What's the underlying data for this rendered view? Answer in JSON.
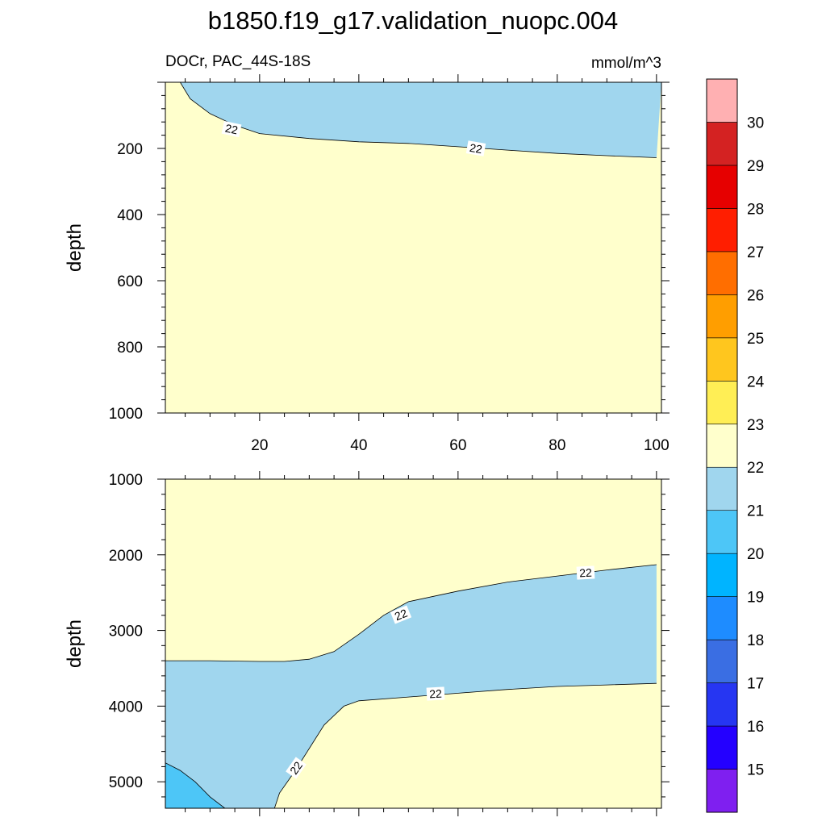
{
  "title": "b1850.f19_g17.validation_nuopc.004",
  "chart_data": {
    "type": "contour",
    "title": "b1850.f19_g17.validation_nuopc.004",
    "variable_label": "DOCr, PAC_44S-18S",
    "units": "mmol/m^3",
    "panels": [
      {
        "name": "upper",
        "ylabel": "depth",
        "xlim": [
          1,
          101
        ],
        "ylim": [
          1000,
          0
        ],
        "x_ticks": [
          "20",
          "40",
          "60",
          "80",
          "100"
        ],
        "y_ticks": [
          "200",
          "400",
          "600",
          "800",
          "1000"
        ],
        "contour_labels": [
          "22",
          "22"
        ],
        "contour_22_depth": {
          "x": [
            4,
            6,
            10,
            15,
            20,
            30,
            40,
            50,
            60,
            70,
            80,
            90,
            100
          ],
          "depth": [
            0,
            50,
            95,
            130,
            155,
            170,
            180,
            185,
            195,
            205,
            215,
            222,
            228
          ]
        }
      },
      {
        "name": "lower",
        "ylabel": "depth",
        "xlim": [
          1,
          101
        ],
        "ylim": [
          5350,
          1000
        ],
        "x_ticks": [],
        "y_ticks": [
          "1000",
          "2000",
          "3000",
          "4000",
          "5000"
        ],
        "contour_labels": [
          "22",
          "22",
          "22",
          "22"
        ],
        "contour_22_upper": {
          "x": [
            1,
            10,
            20,
            25,
            30,
            35,
            40,
            45,
            50,
            60,
            70,
            80,
            90,
            100
          ],
          "depth": [
            3400,
            3400,
            3410,
            3410,
            3380,
            3280,
            3050,
            2800,
            2620,
            2480,
            2360,
            2280,
            2200,
            2130
          ]
        },
        "contour_22_lower": {
          "x": [
            23,
            24,
            27,
            30,
            33,
            37,
            40,
            50,
            60,
            70,
            80,
            90,
            100
          ],
          "depth": [
            5350,
            5150,
            4870,
            4560,
            4250,
            4000,
            3930,
            3880,
            3830,
            3780,
            3740,
            3720,
            3700
          ]
        },
        "contour_21": {
          "x": [
            1,
            4,
            7,
            10,
            13
          ],
          "depth": [
            4750,
            4850,
            5000,
            5200,
            5350
          ]
        }
      }
    ],
    "colorbar": {
      "levels": [
        "15",
        "16",
        "17",
        "18",
        "19",
        "20",
        "21",
        "22",
        "23",
        "24",
        "25",
        "26",
        "27",
        "28",
        "29",
        "30"
      ],
      "colors": [
        "#7f1ff0",
        "#2400ff",
        "#2636f2",
        "#3a6ee3",
        "#1e8cff",
        "#00b4ff",
        "#4dc6f7",
        "#a0d6ee",
        "#ffffcc",
        "#ffee55",
        "#ffc61e",
        "#ff9e00",
        "#ff6e00",
        "#ff1e00",
        "#e60000",
        "#d42222",
        "#ffb0b2"
      ]
    }
  }
}
